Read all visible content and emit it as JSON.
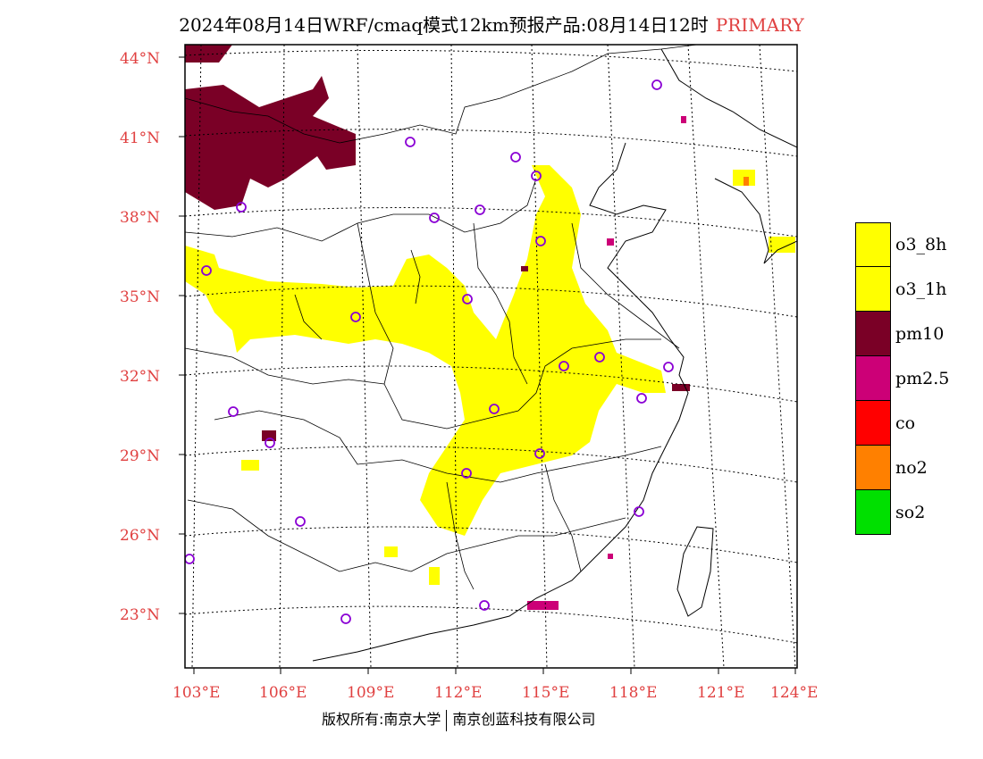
{
  "title": {
    "main": "2024年08月14日WRF/cmaq模式12km预报产品:08月14日12时",
    "tag": "PRIMARY"
  },
  "lat_labels": [
    "44°N",
    "41°N",
    "38°N",
    "35°N",
    "32°N",
    "29°N",
    "26°N",
    "23°N"
  ],
  "lon_labels": [
    "103°E",
    "106°E",
    "109°E",
    "112°E",
    "115°E",
    "118°E",
    "121°E",
    "124°E"
  ],
  "legend": [
    {
      "label": "o3_8h",
      "color": "#ffff00"
    },
    {
      "label": "o3_1h",
      "color": "#ffff00"
    },
    {
      "label": "pm10",
      "color": "#7a0026"
    },
    {
      "label": "pm2.5",
      "color": "#cc0077"
    },
    {
      "label": "co",
      "color": "#ff0000"
    },
    {
      "label": "no2",
      "color": "#ff8000"
    },
    {
      "label": "so2",
      "color": "#00e000"
    }
  ],
  "footer": {
    "left": "版权所有:南京大学",
    "right": "南京创蓝科技有限公司"
  },
  "colors": {
    "axis_label": "#e04040",
    "station_marker": "#8a00d4"
  }
}
